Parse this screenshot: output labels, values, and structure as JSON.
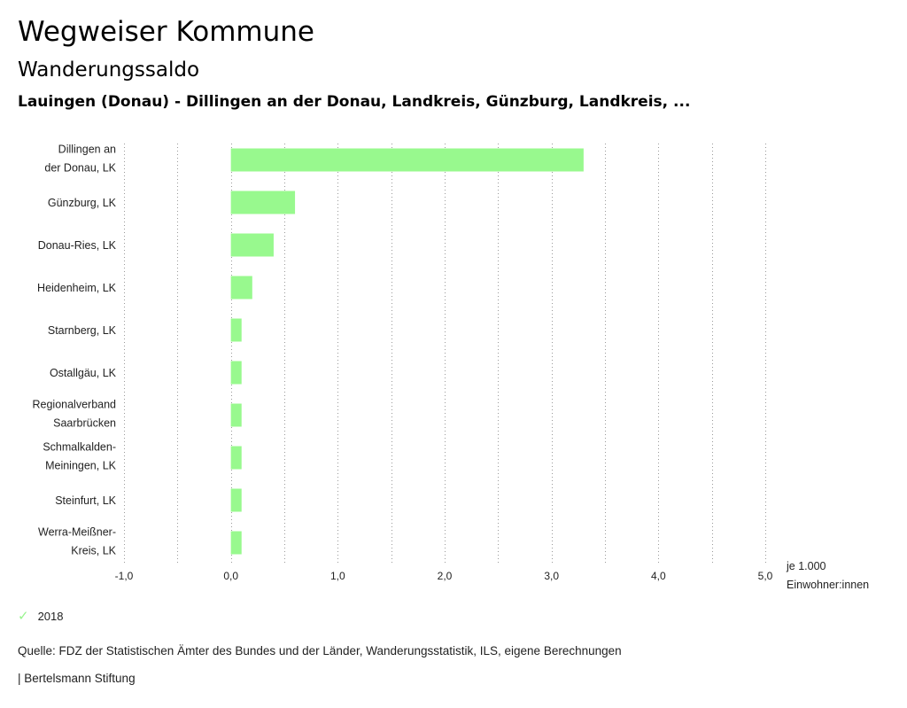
{
  "header": {
    "title": "Wegweiser Kommune",
    "subtitle": "Wanderungssaldo",
    "region": "Lauingen (Donau) - Dillingen an der Donau, Landkreis, Günzburg, Landkreis, ..."
  },
  "chart_data": {
    "type": "bar",
    "orientation": "horizontal",
    "categories": [
      [
        "Dillingen an",
        "der Donau, LK"
      ],
      [
        "Günzburg, LK"
      ],
      [
        "Donau-Ries, LK"
      ],
      [
        "Heidenheim, LK"
      ],
      [
        "Starnberg, LK"
      ],
      [
        "Ostallgäu, LK"
      ],
      [
        "Regionalverband",
        "Saarbrücken"
      ],
      [
        "Schmalkalden-",
        "Meiningen, LK"
      ],
      [
        "Steinfurt, LK"
      ],
      [
        "Werra-Meißner-",
        "Kreis, LK"
      ]
    ],
    "series": [
      {
        "name": "2018",
        "values": [
          3.3,
          0.6,
          0.4,
          0.2,
          0.1,
          0.1,
          0.1,
          0.1,
          0.1,
          0.1
        ]
      }
    ],
    "xlim": [
      -1.0,
      5.0
    ],
    "xticks": [
      -1.0,
      0.0,
      1.0,
      2.0,
      3.0,
      4.0,
      5.0
    ],
    "xtick_labels": [
      "-1,0",
      "0,0",
      "1,0",
      "2,0",
      "3,0",
      "4,0",
      "5,0"
    ],
    "unit_label": [
      "je 1.000",
      "Einwohner:innen"
    ],
    "grid": "vertical dotted",
    "color": "#98f98e"
  },
  "legend": {
    "label": "2018",
    "icon": "check-icon",
    "color": "#98f48e"
  },
  "footer": {
    "source": "Quelle: FDZ der Statistischen Ämter des Bundes und der Länder, Wanderungsstatistik, ILS, eigene Berechnungen",
    "brand": "| Bertelsmann Stiftung"
  }
}
